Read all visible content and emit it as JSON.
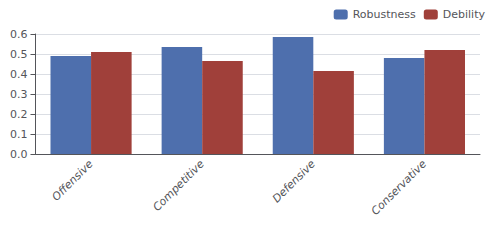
{
  "chart_data": {
    "type": "bar",
    "categories": [
      "Offensive",
      "Competitive",
      "Defensive",
      "Conservative"
    ],
    "series": [
      {
        "name": "Robustness",
        "color": "#4E6FAD",
        "values": [
          0.49,
          0.535,
          0.585,
          0.48
        ]
      },
      {
        "name": "Debility",
        "color": "#A0403A",
        "values": [
          0.51,
          0.465,
          0.415,
          0.52
        ]
      }
    ],
    "ylim": [
      0,
      0.6
    ],
    "yticks": [
      {
        "value": 0,
        "label": "0.0"
      },
      0.1,
      0.2,
      0.3,
      0.4,
      0.5,
      0.6
    ],
    "grid": true,
    "legend": "upper right"
  }
}
